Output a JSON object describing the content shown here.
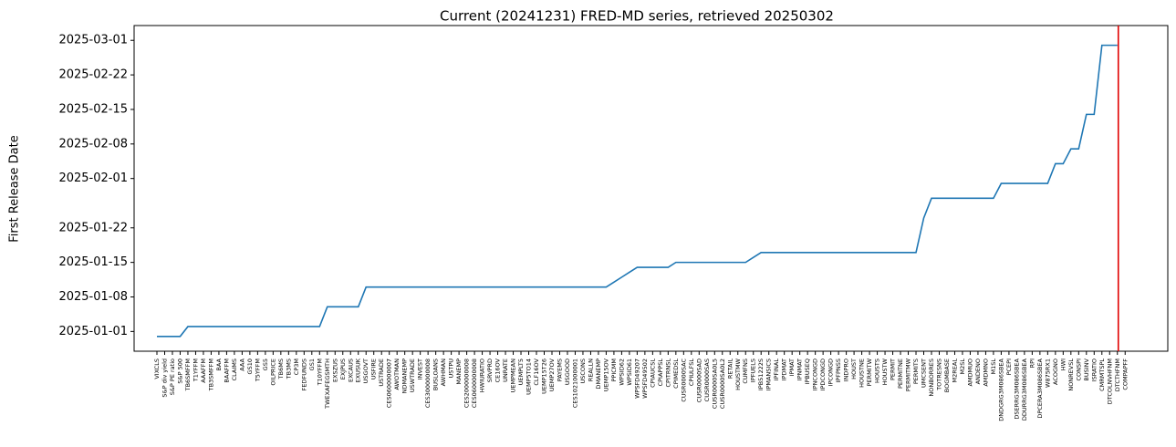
{
  "chart_data": {
    "type": "line",
    "title": "Current (20241231) FRED-MD series, retrieved 20250302",
    "y_label": "First Release Date",
    "categories": [
      "VIXCLS",
      "S&P div yield",
      "S&P PE ratio",
      "S&P 500",
      "TB6SMFFM",
      "T1YFFM",
      "AAAFFM",
      "TB3SMFFM",
      "BAA",
      "BAAFFM",
      "CLAIMS",
      "AAA",
      "GS10",
      "T5YFFM",
      "GS5",
      "OILPRICE",
      "TB6MS",
      "TB3MS",
      "CP3M",
      "FEDFUNDS",
      "GS1",
      "T10YFFM",
      "TWEXAFEGSMTH",
      "EXSZUS",
      "EXJPUS",
      "EXCAUS",
      "EXUSUK",
      "USGOVT",
      "USFIRE",
      "USTRADE",
      "CES0600000007",
      "AWOTMAN",
      "NDMANEMP",
      "USWTRADE",
      "INVEST",
      "CES3000000008",
      "BUSLOANS",
      "AWHMAN",
      "USTPU",
      "MANEMP",
      "CES2000000008",
      "CES0600000008",
      "HWIURATIO",
      "SRVPRD",
      "CE16OV",
      "UNRATE",
      "UEMPMEAN",
      "UEMPLT5",
      "UEMP5TO14",
      "CLF16OV",
      "UEMP15T26",
      "UEMP27OV",
      "PAYEMS",
      "USGOOD",
      "CES1021000001",
      "USCONS",
      "REALLN",
      "DMANEMP",
      "UEMP15OV",
      "PPICMM",
      "WPSID62",
      "WPSID61",
      "WPSFD49207",
      "WPSFD49502",
      "CPIAUCSL",
      "CPIAPPSL",
      "CPITRNSL",
      "CPIMEDSL",
      "CUSR0000SAC",
      "CPIULFSL",
      "CUSR0000SAD",
      "CUSR0000SAS",
      "CUSR0000SA0L5",
      "CUSR0000SA0L2",
      "RETAIL",
      "HOUSTMW",
      "CUMFNS",
      "IPFUELS",
      "IPB51222S",
      "IPMANSICS",
      "IPFINAL",
      "IPDMAT",
      "IPMAT",
      "IPNMAT",
      "IPBUSEQ",
      "IPNCONGD",
      "IPDCONGD",
      "IPCONGD",
      "IPFPNSS",
      "INDPRO",
      "HOUST",
      "HOUSTNE",
      "PERMITW",
      "HOUSTS",
      "HOUSTW",
      "PERMIT",
      "PERMITNE",
      "PERMITMW",
      "PERMITS",
      "UMCSENT",
      "NONBORRES",
      "TOTRESNS",
      "BOGMBASE",
      "M2REAL",
      "M2SL",
      "AMDMUO",
      "ANDENO",
      "AMDMNO",
      "M1SL",
      "DNDGRG3M086SBEA",
      "PCEPI",
      "DSERRG3M086SBEA",
      "DDURRG3M086SBEA",
      "RPI",
      "DPCERA3M086SBEA",
      "W875RX1",
      "ACOGNO",
      "HWI",
      "NONREVSL",
      "CONSPI",
      "BUSINV",
      "ISRATIO",
      "CMRMTSPL",
      "DTCOLNVHFNM",
      "DTCTHFNM",
      "COMPAPFF"
    ],
    "series": [
      {
        "color": "#1f77b4",
        "values": [
          "2024-12-31",
          "2024-12-31",
          "2024-12-31",
          "2024-12-31",
          "2025-01-02",
          "2025-01-02",
          "2025-01-02",
          "2025-01-02",
          "2025-01-02",
          "2025-01-02",
          "2025-01-02",
          "2025-01-02",
          "2025-01-02",
          "2025-01-02",
          "2025-01-02",
          "2025-01-02",
          "2025-01-02",
          "2025-01-02",
          "2025-01-02",
          "2025-01-02",
          "2025-01-02",
          "2025-01-02",
          "2025-01-06",
          "2025-01-06",
          "2025-01-06",
          "2025-01-06",
          "2025-01-06",
          "2025-01-10",
          "2025-01-10",
          "2025-01-10",
          "2025-01-10",
          "2025-01-10",
          "2025-01-10",
          "2025-01-10",
          "2025-01-10",
          "2025-01-10",
          "2025-01-10",
          "2025-01-10",
          "2025-01-10",
          "2025-01-10",
          "2025-01-10",
          "2025-01-10",
          "2025-01-10",
          "2025-01-10",
          "2025-01-10",
          "2025-01-10",
          "2025-01-10",
          "2025-01-10",
          "2025-01-10",
          "2025-01-10",
          "2025-01-10",
          "2025-01-10",
          "2025-01-10",
          "2025-01-10",
          "2025-01-10",
          "2025-01-10",
          "2025-01-10",
          "2025-01-10",
          "2025-01-10",
          "2025-01-11",
          "2025-01-12",
          "2025-01-13",
          "2025-01-14",
          "2025-01-14",
          "2025-01-14",
          "2025-01-14",
          "2025-01-14",
          "2025-01-15",
          "2025-01-15",
          "2025-01-15",
          "2025-01-15",
          "2025-01-15",
          "2025-01-15",
          "2025-01-15",
          "2025-01-15",
          "2025-01-15",
          "2025-01-15",
          "2025-01-16",
          "2025-01-17",
          "2025-01-17",
          "2025-01-17",
          "2025-01-17",
          "2025-01-17",
          "2025-01-17",
          "2025-01-17",
          "2025-01-17",
          "2025-01-17",
          "2025-01-17",
          "2025-01-17",
          "2025-01-17",
          "2025-01-17",
          "2025-01-17",
          "2025-01-17",
          "2025-01-17",
          "2025-01-17",
          "2025-01-17",
          "2025-01-17",
          "2025-01-17",
          "2025-01-17",
          "2025-01-24",
          "2025-01-28",
          "2025-01-28",
          "2025-01-28",
          "2025-01-28",
          "2025-01-28",
          "2025-01-28",
          "2025-01-28",
          "2025-01-28",
          "2025-01-28",
          "2025-01-31",
          "2025-01-31",
          "2025-01-31",
          "2025-01-31",
          "2025-01-31",
          "2025-01-31",
          "2025-01-31",
          "2025-02-04",
          "2025-02-04",
          "2025-02-07",
          "2025-02-07",
          "2025-02-14",
          "2025-02-14",
          "2025-02-28",
          "2025-02-28",
          "2025-02-28",
          null
        ]
      }
    ],
    "ylim": [
      "2024-12-28",
      "2025-03-04"
    ],
    "yticks": [
      "2025-01-01",
      "2025-01-08",
      "2025-01-15",
      "2025-01-22",
      "2025-02-01",
      "2025-02-08",
      "2025-02-15",
      "2025-02-22",
      "2025-03-01"
    ],
    "vline_index": 124,
    "vline_color": "#e00000"
  }
}
